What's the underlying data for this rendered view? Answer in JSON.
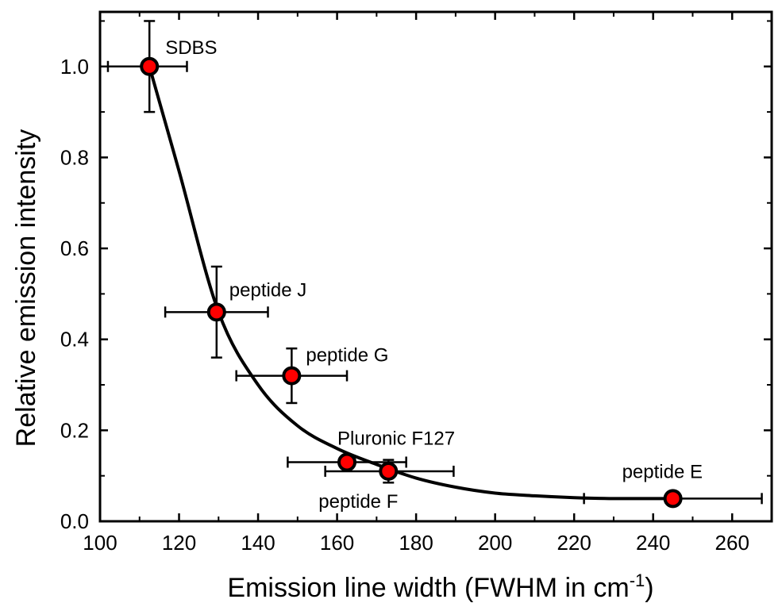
{
  "chart_data": {
    "type": "scatter",
    "title": "",
    "xlabel": "Emission line width (FWHM in cm",
    "xlabel_sup": "-1",
    "xlabel_close": ")",
    "ylabel": "Relative emission intensity",
    "xlim": [
      100,
      270
    ],
    "ylim": [
      0.0,
      1.12
    ],
    "x_ticks": [
      100,
      120,
      140,
      160,
      180,
      200,
      220,
      240,
      260
    ],
    "y_ticks": [
      0.0,
      0.2,
      0.4,
      0.6,
      0.8,
      1.0
    ],
    "y_tick_labels": [
      "0.0",
      "0.2",
      "0.4",
      "0.6",
      "0.8",
      "1.0"
    ],
    "grid": false,
    "marker_fill": "#ff0000",
    "marker_edge": "#000000",
    "points": [
      {
        "label": "SDBS",
        "x": 112.5,
        "y": 1.0,
        "x_err": [
          102,
          122
        ],
        "y_err": [
          0.9,
          1.1
        ]
      },
      {
        "label": "peptide J",
        "x": 129.5,
        "y": 0.46,
        "x_err": [
          116.5,
          142.5
        ],
        "y_err": [
          0.36,
          0.56
        ]
      },
      {
        "label": "peptide G",
        "x": 148.5,
        "y": 0.32,
        "x_err": [
          134.5,
          162.5
        ],
        "y_err": [
          0.26,
          0.38
        ]
      },
      {
        "label": "Pluronic F127",
        "x": 162.5,
        "y": 0.13,
        "x_err": [
          147.5,
          177.5
        ],
        "y_err": [
          0.115,
          0.145
        ]
      },
      {
        "label": "peptide F",
        "x": 173,
        "y": 0.11,
        "x_err": [
          157,
          189.5
        ],
        "y_err": [
          0.085,
          0.135
        ]
      },
      {
        "label": "peptide E",
        "x": 245,
        "y": 0.05,
        "x_err": [
          222.5,
          267.5
        ],
        "y_err": [
          0.045,
          0.055
        ]
      }
    ],
    "fit_curve": {
      "type": "exponential-decay",
      "x": [
        112.5,
        120,
        130,
        140,
        150,
        160,
        170,
        180,
        190,
        200,
        210,
        220,
        230,
        245
      ],
      "y": [
        1.0,
        0.77,
        0.46,
        0.3,
        0.21,
        0.16,
        0.125,
        0.095,
        0.075,
        0.062,
        0.056,
        0.052,
        0.05,
        0.05
      ]
    }
  }
}
